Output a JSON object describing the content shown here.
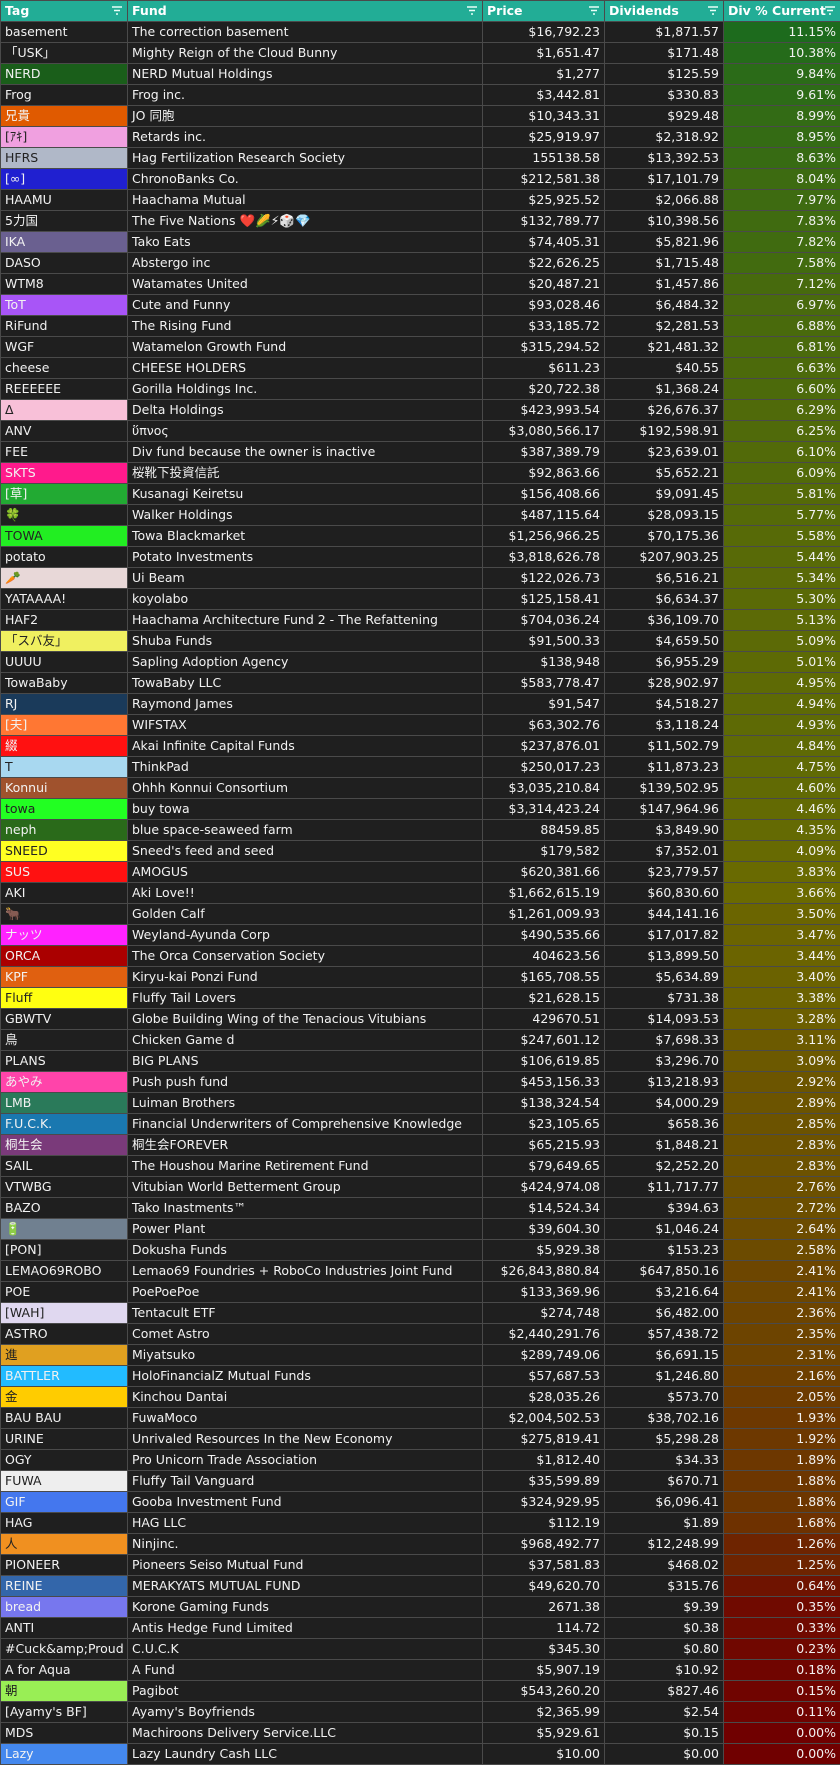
{
  "table": {
    "header": [
      "Tag",
      "Fund",
      "Price",
      "Dividends",
      "Div % Current"
    ],
    "rows": [
      {
        "tag": "basement",
        "fund": "The correction basement",
        "price": "$16,792.23",
        "dividends": "$1,871.57",
        "div": "11.15%"
      },
      {
        "tag": "「USK」",
        "fund": "Mighty Reign of the Cloud Bunny",
        "price": "$1,651.47",
        "dividends": "$171.48",
        "div": "10.38%"
      },
      {
        "tag": "NERD",
        "fund": "NERD Mutual Holdings",
        "price": "$1,277",
        "dividends": "$125.59",
        "div": "9.84%",
        "color": "#1a5e1a"
      },
      {
        "tag": "Frog",
        "fund": "Frog inc.",
        "price": "$3,442.81",
        "dividends": "$330.83",
        "div": "9.61%"
      },
      {
        "tag": "兄貴",
        "fund": "JO 同胞",
        "price": "$10,343.31",
        "dividends": "$929.48",
        "div": "8.99%",
        "color": "#e05a00"
      },
      {
        "tag": "[ｱｷ]",
        "fund": "Retards inc.",
        "price": "$25,919.97",
        "dividends": "$2,318.92",
        "div": "8.95%",
        "color": "#f0a0e0"
      },
      {
        "tag": "HFRS",
        "fund": "Hag Fertilization Research Society",
        "price": "155138.58",
        "dividends": "$13,392.53",
        "div": "8.63%",
        "color": "#b0b8c8"
      },
      {
        "tag": "[∞]",
        "fund": "ChronoBanks Co.",
        "price": "$212,581.38",
        "dividends": "$17,101.79",
        "div": "8.04%",
        "color": "#2020d0"
      },
      {
        "tag": "HAAMU",
        "fund": "Haachama Mutual",
        "price": "$25,925.52",
        "dividends": "$2,066.88",
        "div": "7.97%"
      },
      {
        "tag": "5力国",
        "fund": "The Five Nations ❤️🌽⚡🎲💎",
        "price": "$132,789.77",
        "dividends": "$10,398.56",
        "div": "7.83%"
      },
      {
        "tag": "IKA",
        "fund": "Tako Eats",
        "price": "$74,405.31",
        "dividends": "$5,821.96",
        "div": "7.82%",
        "color": "#6a6090"
      },
      {
        "tag": "DASO",
        "fund": "Abstergo inc",
        "price": "$22,626.25",
        "dividends": "$1,715.48",
        "div": "7.58%"
      },
      {
        "tag": "WTM8",
        "fund": "Watamates United",
        "price": "$20,487.21",
        "dividends": "$1,457.86",
        "div": "7.12%"
      },
      {
        "tag": "ToT",
        "fund": "Cute and Funny",
        "price": "$93,028.46",
        "dividends": "$6,484.32",
        "div": "6.97%",
        "color": "#a855f7"
      },
      {
        "tag": "RiFund",
        "fund": "The Rising Fund",
        "price": "$33,185.72",
        "dividends": "$2,281.53",
        "div": "6.88%"
      },
      {
        "tag": "WGF",
        "fund": "Watamelon Growth Fund",
        "price": "$315,294.52",
        "dividends": "$21,481.32",
        "div": "6.81%"
      },
      {
        "tag": "cheese",
        "fund": "CHEESE HOLDERS",
        "price": "$611.23",
        "dividends": "$40.55",
        "div": "6.63%"
      },
      {
        "tag": "REEEEEE",
        "fund": "Gorilla Holdings Inc.",
        "price": "$20,722.38",
        "dividends": "$1,368.24",
        "div": "6.60%"
      },
      {
        "tag": "Δ",
        "fund": "Delta Holdings",
        "price": "$423,993.54",
        "dividends": "$26,676.37",
        "div": "6.29%",
        "color": "#f8c0d8"
      },
      {
        "tag": "ANV",
        "fund": "ὕπνος",
        "price": "$3,080,566.17",
        "dividends": "$192,598.91",
        "div": "6.25%"
      },
      {
        "tag": "FEE",
        "fund": "Div fund because the owner is inactive",
        "price": "$387,389.79",
        "dividends": "$23,639.01",
        "div": "6.10%"
      },
      {
        "tag": "SKTS",
        "fund": "桜靴下投資信託",
        "price": "$92,863.66",
        "dividends": "$5,652.21",
        "div": "6.09%",
        "color": "#ff1a8c"
      },
      {
        "tag": "[草]",
        "fund": "Kusanagi Keiretsu",
        "price": "$156,408.66",
        "dividends": "$9,091.45",
        "div": "5.81%",
        "color": "#22aa33"
      },
      {
        "tag": "🍀",
        "fund": "Walker Holdings",
        "price": "$487,115.64",
        "dividends": "$28,093.15",
        "div": "5.77%"
      },
      {
        "tag": "TOWA",
        "fund": "Towa Blackmarket",
        "price": "$1,256,966.25",
        "dividends": "$70,175.36",
        "div": "5.58%",
        "color": "#22ee22"
      },
      {
        "tag": "potato",
        "fund": "Potato Investments",
        "price": "$3,818,626.78",
        "dividends": "$207,903.25",
        "div": "5.44%"
      },
      {
        "tag": "🥕",
        "fund": "Ui Beam",
        "price": "$122,026.73",
        "dividends": "$6,516.21",
        "div": "5.34%",
        "color": "#e8d8d8"
      },
      {
        "tag": "YATAAAA!",
        "fund": "koyolabo",
        "price": "$125,158.41",
        "dividends": "$6,634.37",
        "div": "5.30%"
      },
      {
        "tag": "HAF2",
        "fund": "Haachama Architecture Fund 2 - The Refattening",
        "price": "$704,036.24",
        "dividends": "$36,109.70",
        "div": "5.13%"
      },
      {
        "tag": "「スバ友」",
        "fund": "Shuba Funds",
        "price": "$91,500.33",
        "dividends": "$4,659.50",
        "div": "5.09%",
        "color": "#f0f060"
      },
      {
        "tag": "UUUU",
        "fund": "Sapling Adoption Agency",
        "price": "$138,948",
        "dividends": "$6,955.29",
        "div": "5.01%"
      },
      {
        "tag": "TowaBaby",
        "fund": "TowaBaby LLC",
        "price": "$583,778.47",
        "dividends": "$28,902.97",
        "div": "4.95%"
      },
      {
        "tag": "RJ",
        "fund": "Raymond James",
        "price": "$91,547",
        "dividends": "$4,518.27",
        "div": "4.94%",
        "color": "#1a3a5a"
      },
      {
        "tag": "[夫]",
        "fund": "WIFSTAX",
        "price": "$63,302.76",
        "dividends": "$3,118.24",
        "div": "4.93%",
        "color": "#ff7733"
      },
      {
        "tag": "綴",
        "fund": "Akai Infinite Capital Funds",
        "price": "$237,876.01",
        "dividends": "$11,502.79",
        "div": "4.84%",
        "color": "#ff1111"
      },
      {
        "tag": "T",
        "fund": "ThinkPad",
        "price": "$250,017.23",
        "dividends": "$11,873.23",
        "div": "4.75%",
        "color": "#a8d8f0"
      },
      {
        "tag": "Konnui",
        "fund": "Ohhh Konnui Consortium",
        "price": "$3,035,210.84",
        "dividends": "$139,502.95",
        "div": "4.60%",
        "color": "#a0522d"
      },
      {
        "tag": "towa",
        "fund": "buy towa",
        "price": "$3,314,423.24",
        "dividends": "$147,964.96",
        "div": "4.46%",
        "color": "#22ff22"
      },
      {
        "tag": "neph",
        "fund": "blue space-seaweed farm",
        "price": "88459.85",
        "dividends": "$3,849.90",
        "div": "4.35%",
        "color": "#2a6a1a"
      },
      {
        "tag": "SNEED",
        "fund": "Sneed's feed and seed",
        "price": "$179,582",
        "dividends": "$7,352.01",
        "div": "4.09%",
        "color": "#ffff22"
      },
      {
        "tag": "SUS",
        "fund": "AMOGUS",
        "price": "$620,381.66",
        "dividends": "$23,779.57",
        "div": "3.83%",
        "color": "#ff1111"
      },
      {
        "tag": "AKI",
        "fund": "Aki Love!!",
        "price": "$1,662,615.19",
        "dividends": "$60,830.60",
        "div": "3.66%"
      },
      {
        "tag": "🐂",
        "fund": "Golden Calf",
        "price": "$1,261,009.93",
        "dividends": "$44,141.16",
        "div": "3.50%"
      },
      {
        "tag": "ナッツ",
        "fund": "Weyland-Ayunda Corp",
        "price": "$490,535.66",
        "dividends": "$17,017.82",
        "div": "3.47%",
        "color": "#ff22ff"
      },
      {
        "tag": "ORCA",
        "fund": "The Orca Conservation Society",
        "price": "404623.56",
        "dividends": "$13,899.50",
        "div": "3.44%",
        "color": "#aa0000"
      },
      {
        "tag": "KPF",
        "fund": "Kiryu-kai Ponzi Fund",
        "price": "$165,708.55",
        "dividends": "$5,634.89",
        "div": "3.40%",
        "color": "#e06010"
      },
      {
        "tag": "Fluff",
        "fund": "Fluffy Tail Lovers",
        "price": "$21,628.15",
        "dividends": "$731.38",
        "div": "3.38%",
        "color": "#ffff11"
      },
      {
        "tag": "GBWTV",
        "fund": "Globe Building Wing of the Tenacious Vitubians",
        "price": "429670.51",
        "dividends": "$14,093.53",
        "div": "3.28%"
      },
      {
        "tag": "鳥",
        "fund": "Chicken Game d",
        "price": "$247,601.12",
        "dividends": "$7,698.33",
        "div": "3.11%"
      },
      {
        "tag": "PLANS",
        "fund": "BIG PLANS",
        "price": "$106,619.85",
        "dividends": "$3,296.70",
        "div": "3.09%"
      },
      {
        "tag": "あやみ",
        "fund": "Push push fund",
        "price": "$453,156.33",
        "dividends": "$13,218.93",
        "div": "2.92%",
        "color": "#ff44aa"
      },
      {
        "tag": "LMB",
        "fund": "Luiman Brothers",
        "price": "$138,324.54",
        "dividends": "$4,000.29",
        "div": "2.89%",
        "color": "#2a7a5a"
      },
      {
        "tag": "F.U.C.K.",
        "fund": "Financial Underwriters of Comprehensive Knowledge",
        "price": "$23,105.65",
        "dividends": "$658.36",
        "div": "2.85%",
        "color": "#1a78b0"
      },
      {
        "tag": "桐生会",
        "fund": "桐生会FOREVER",
        "price": "$65,215.93",
        "dividends": "$1,848.21",
        "div": "2.83%",
        "color": "#7a3a7a"
      },
      {
        "tag": "SAIL",
        "fund": "The Houshou Marine Retirement Fund",
        "price": "$79,649.65",
        "dividends": "$2,252.20",
        "div": "2.83%"
      },
      {
        "tag": "VTWBG",
        "fund": "Vitubian World Betterment Group",
        "price": "$424,974.08",
        "dividends": "$11,717.77",
        "div": "2.76%"
      },
      {
        "tag": "BAZO",
        "fund": "Tako Inastments™",
        "price": "$14,524.34",
        "dividends": "$394.63",
        "div": "2.72%"
      },
      {
        "tag": "🔋",
        "fund": "Power Plant",
        "price": "$39,604.30",
        "dividends": "$1,046.24",
        "div": "2.64%",
        "color": "#708090"
      },
      {
        "tag": "[PON]",
        "fund": "Dokusha Funds",
        "price": "$5,929.38",
        "dividends": "$153.23",
        "div": "2.58%"
      },
      {
        "tag": "LEMAO69ROBO",
        "fund": "Lemao69 Foundries + RoboCo Industries Joint Fund",
        "price": "$26,843,880.84",
        "dividends": "$647,850.16",
        "div": "2.41%"
      },
      {
        "tag": "POE",
        "fund": "PoePoePoe",
        "price": "$133,369.96",
        "dividends": "$3,216.64",
        "div": "2.41%"
      },
      {
        "tag": "[WAH]",
        "fund": "Tentacult ETF",
        "price": "$274,748",
        "dividends": "$6,482.00",
        "div": "2.36%",
        "color": "#e0d8f0"
      },
      {
        "tag": "ASTRO",
        "fund": "Comet Astro",
        "price": "$2,440,291.76",
        "dividends": "$57,438.72",
        "div": "2.35%"
      },
      {
        "tag": "進",
        "fund": "Miyatsuko",
        "price": "$289,749.06",
        "dividends": "$6,691.15",
        "div": "2.31%",
        "color": "#e0a020"
      },
      {
        "tag": "BATTLER",
        "fund": "HoloFinancialZ Mutual Funds",
        "price": "$57,687.53",
        "dividends": "$1,246.80",
        "div": "2.16%",
        "color": "#22bbff"
      },
      {
        "tag": "金",
        "fund": "Kinchou Dantai",
        "price": "$28,035.26",
        "dividends": "$573.70",
        "div": "2.05%",
        "color": "#ffcc00"
      },
      {
        "tag": "BAU BAU",
        "fund": "FuwaMoco",
        "price": "$2,004,502.53",
        "dividends": "$38,702.16",
        "div": "1.93%"
      },
      {
        "tag": "URINE",
        "fund": "Unrivaled Resources In the New Economy",
        "price": "$275,819.41",
        "dividends": "$5,298.28",
        "div": "1.92%"
      },
      {
        "tag": "OGY",
        "fund": "Pro Unicorn Trade Association",
        "price": "$1,812.40",
        "dividends": "$34.33",
        "div": "1.89%"
      },
      {
        "tag": "FUWA",
        "fund": "Fluffy Tail Vanguard",
        "price": "$35,599.89",
        "dividends": "$670.71",
        "div": "1.88%",
        "color": "#eeeeee"
      },
      {
        "tag": "GIF",
        "fund": "Gooba Investment Fund",
        "price": "$324,929.95",
        "dividends": "$6,096.41",
        "div": "1.88%",
        "color": "#4477ee"
      },
      {
        "tag": "HAG",
        "fund": "HAG LLC",
        "price": "$112.19",
        "dividends": "$1.89",
        "div": "1.68%"
      },
      {
        "tag": "人",
        "fund": "Ninjinc.",
        "price": "$968,492.77",
        "dividends": "$12,248.99",
        "div": "1.26%",
        "color": "#f09020"
      },
      {
        "tag": "PIONEER",
        "fund": "Pioneers Seiso Mutual Fund",
        "price": "$37,581.83",
        "dividends": "$468.02",
        "div": "1.25%"
      },
      {
        "tag": "REINE",
        "fund": "MERAKYATS MUTUAL FUND",
        "price": "$49,620.70",
        "dividends": "$315.76",
        "div": "0.64%",
        "color": "#3366aa"
      },
      {
        "tag": "bread",
        "fund": "Korone Gaming Funds",
        "price": "2671.38",
        "dividends": "$9.39",
        "div": "0.35%",
        "color": "#7777ee"
      },
      {
        "tag": "ANTI",
        "fund": "Antis Hedge Fund Limited",
        "price": "114.72",
        "dividends": "$0.38",
        "div": "0.33%"
      },
      {
        "tag": "#Cuck&amp;Proud",
        "fund": "C.U.C.K",
        "price": "$345.30",
        "dividends": "$0.80",
        "div": "0.23%"
      },
      {
        "tag": "A for Aqua",
        "fund": "A Fund",
        "price": "$5,907.19",
        "dividends": "$10.92",
        "div": "0.18%"
      },
      {
        "tag": "朝",
        "fund": "Pagibot",
        "price": "$543,260.20",
        "dividends": "$827.46",
        "div": "0.15%",
        "color": "#99ee55"
      },
      {
        "tag": "[Ayamy's BF]",
        "fund": "Ayamy's Boyfriends",
        "price": "$2,365.99",
        "dividends": "$2.54",
        "div": "0.11%"
      },
      {
        "tag": "MDS",
        "fund": "Machiroons Delivery Service.LLC",
        "price": "$5,929.61",
        "dividends": "$0.15",
        "div": "0.00%"
      },
      {
        "tag": "Lazy",
        "fund": "Lazy Laundry Cash LLC",
        "price": "$10.00",
        "dividends": "$0.00",
        "div": "0.00%",
        "color": "#4488ee"
      }
    ]
  }
}
